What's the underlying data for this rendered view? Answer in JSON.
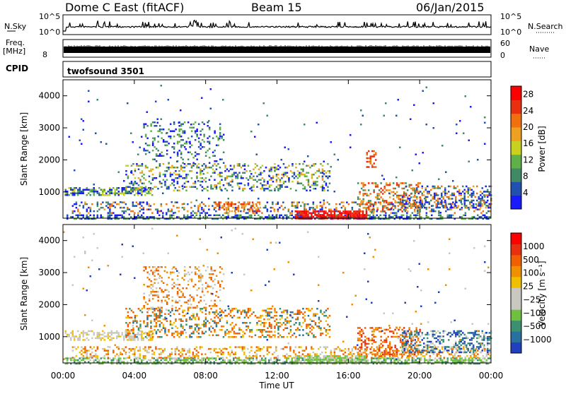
{
  "header": {
    "site": "Dome C East (fitACF)",
    "beam": "Beam 15",
    "date": "06/Jan/2015"
  },
  "top_panels": {
    "nsky_label": "N.Sky",
    "nsearch_label": "N.Search",
    "nsky_ticks": [
      "10^5",
      "10^0"
    ],
    "nsky_right_ticks": [
      "10^5",
      "10^0"
    ],
    "freq_label": "Freq.",
    "freq_unit": "[MHz]",
    "freq_ticks": [
      "8"
    ],
    "nave_label": "Nave",
    "nave_ticks": [
      "60",
      "0"
    ],
    "cpid_label": "CPID",
    "cpid_value": "twofsound 3501"
  },
  "chart_data": [
    {
      "type": "heatmap",
      "quantity": "Power",
      "ylabel": "Slant Range [km]",
      "xlabel": "",
      "xlim": [
        "00:00",
        "24:00"
      ],
      "ylim": [
        180,
        4500
      ],
      "yticks": [
        1000,
        2000,
        3000,
        4000
      ],
      "colorbar_label": "Power [dB]",
      "colorbar_ticks": [
        4,
        8,
        12,
        16,
        20,
        24,
        28
      ],
      "colorbar_range": [
        0,
        30
      ],
      "colors": [
        "#1a1aff",
        "#2050b0",
        "#3f8a64",
        "#60b048",
        "#c8d020",
        "#f0a020",
        "#f07010",
        "#e83010",
        "#ff0000"
      ]
    },
    {
      "type": "heatmap",
      "quantity": "Velocity",
      "ylabel": "Slant Range [km]",
      "xlabel": "Time UT",
      "xlim": [
        "00:00",
        "24:00"
      ],
      "ylim": [
        180,
        4500
      ],
      "yticks": [
        1000,
        2000,
        3000,
        4000
      ],
      "xticks": [
        "00:00",
        "04:00",
        "08:00",
        "12:00",
        "16:00",
        "20:00",
        "00:00"
      ],
      "colorbar_label": "Velocity [m s⁻¹]",
      "colorbar_ticks": [
        "1000",
        "500",
        "100",
        "25",
        "−25",
        "−100",
        "−500",
        "−1000"
      ],
      "colors": [
        "#2040c0",
        "#2870a0",
        "#3a9070",
        "#70c040",
        "#c8c8c0",
        "#c8c8c0",
        "#f0c000",
        "#f09000",
        "#f06000",
        "#e83010",
        "#ff0000"
      ]
    }
  ]
}
